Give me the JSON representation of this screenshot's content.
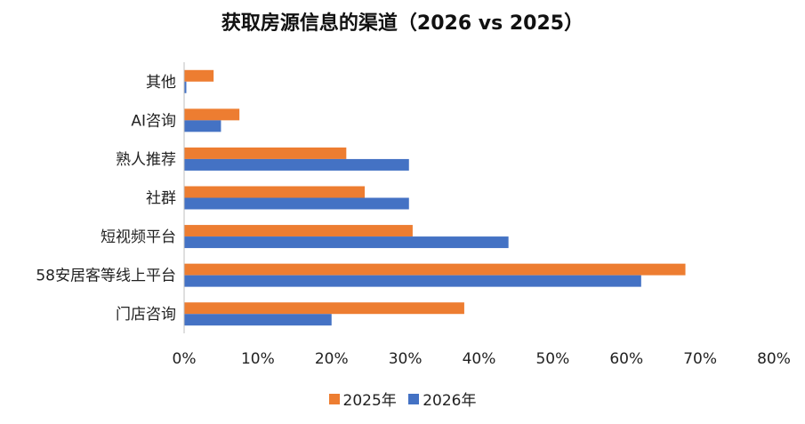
{
  "chart_data": {
    "type": "bar",
    "orientation": "horizontal",
    "title": "获取房源信息的渠道（2026 vs 2025）",
    "categories": [
      "其他",
      "AI咨询",
      "熟人推荐",
      "社群",
      "短视频平台",
      "58安居客等线上平台",
      "门店咨询"
    ],
    "series": [
      {
        "name": "2025年",
        "color": "#ED7D31",
        "values": [
          4,
          7.5,
          22,
          24.5,
          31,
          68,
          38
        ]
      },
      {
        "name": "2026年",
        "color": "#4472C4",
        "values": [
          0.3,
          5,
          30.5,
          30.5,
          44,
          62,
          20
        ]
      }
    ],
    "xlim": [
      0,
      80
    ],
    "xticks": [
      "0%",
      "10%",
      "20%",
      "30%",
      "40%",
      "50%",
      "60%",
      "70%",
      "80%"
    ],
    "grid": false,
    "legend_position": "bottom"
  }
}
